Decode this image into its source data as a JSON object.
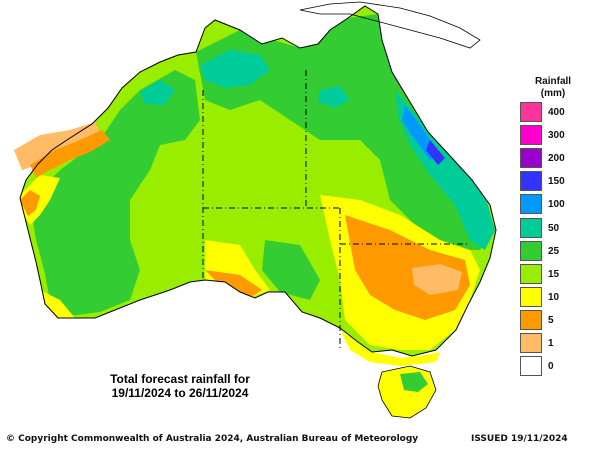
{
  "map": {
    "caption_line1": "Total forecast rainfall for",
    "caption_line2": "19/11/2024 to 26/11/2024"
  },
  "legend": {
    "title_line1": "Rainfall",
    "title_line2": "(mm)",
    "levels": [
      {
        "label": "400",
        "color": "#ff3399"
      },
      {
        "label": "300",
        "color": "#ff00cc"
      },
      {
        "label": "200",
        "color": "#9900cc"
      },
      {
        "label": "150",
        "color": "#3333ff"
      },
      {
        "label": "100",
        "color": "#0099ff"
      },
      {
        "label": "50",
        "color": "#00cc99"
      },
      {
        "label": "25",
        "color": "#33cc33"
      },
      {
        "label": "15",
        "color": "#99ee00"
      },
      {
        "label": "10",
        "color": "#ffff00"
      },
      {
        "label": "5",
        "color": "#ff9900"
      },
      {
        "label": "1",
        "color": "#ffbb66"
      },
      {
        "label": "0",
        "color": "#ffffff"
      }
    ]
  },
  "footer": {
    "copyright": "© Copyright Commonwealth of Australia 2024, Australian Bureau of Meteorology",
    "issued": "ISSUED 19/11/2024"
  }
}
